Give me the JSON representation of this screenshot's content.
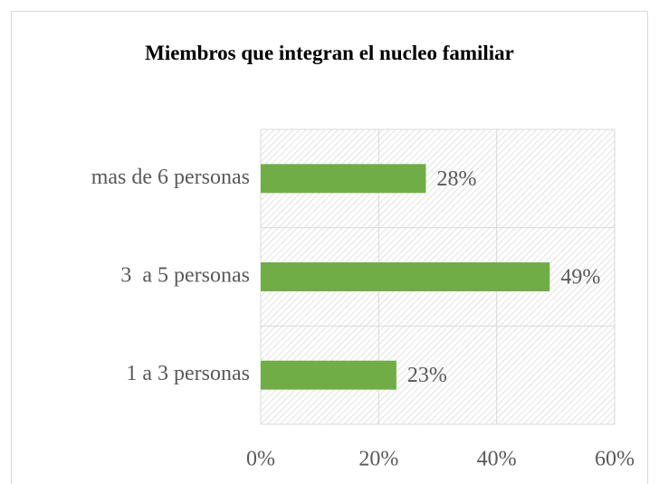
{
  "chart_data": {
    "type": "bar",
    "orientation": "horizontal",
    "title": "Miembros que integran el nucleo familiar",
    "categories": [
      "mas de 6 personas",
      "3  a 5 personas",
      "1 a 3 personas"
    ],
    "values": [
      28,
      49,
      23
    ],
    "value_labels": [
      "28%",
      "49%",
      "23%"
    ],
    "color": "#70ad47",
    "xlim": [
      0,
      60
    ],
    "xticks": [
      {
        "value": 0,
        "label": "0%"
      },
      {
        "value": 20,
        "label": "20%"
      },
      {
        "value": 40,
        "label": "40%"
      },
      {
        "value": 60,
        "label": "60%"
      }
    ],
    "grid": true
  }
}
